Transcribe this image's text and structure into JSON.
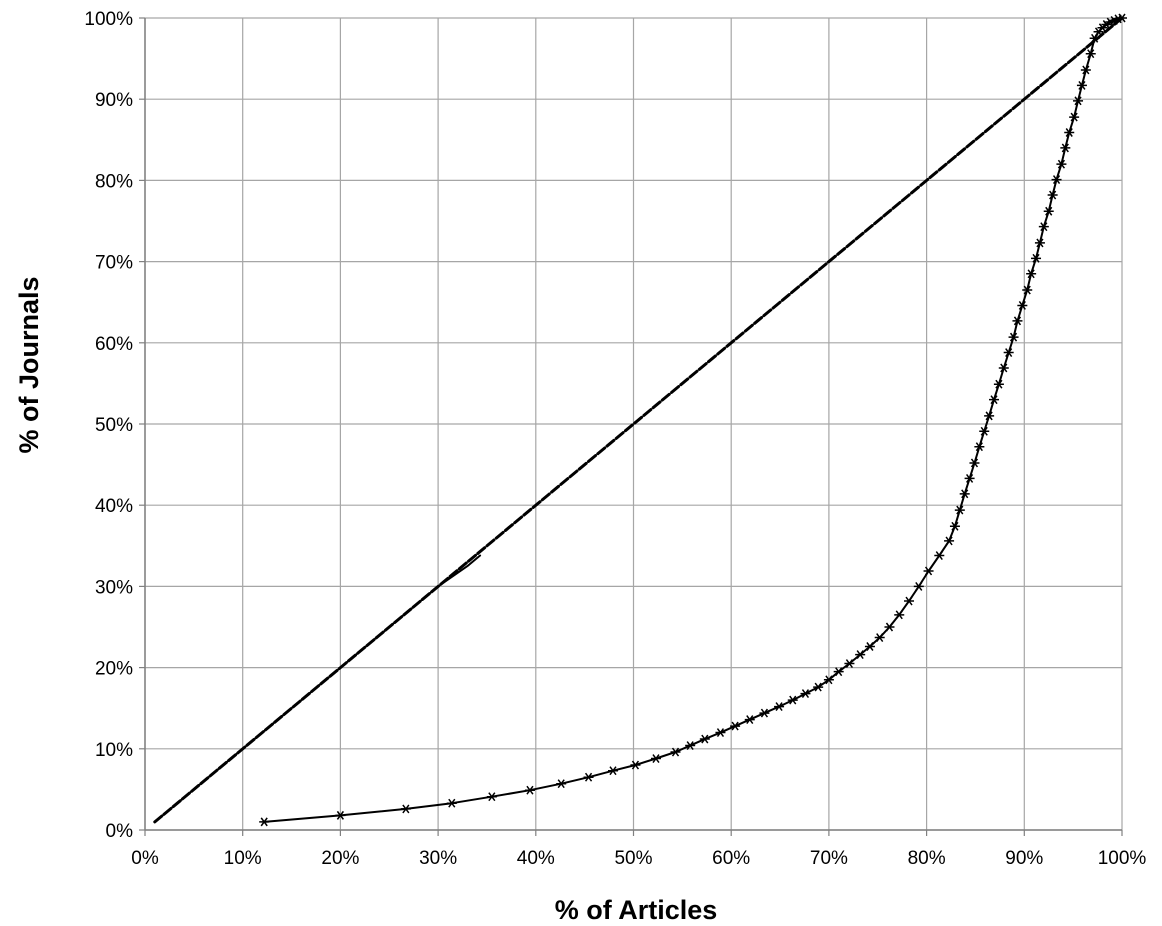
{
  "chart_data": {
    "type": "line",
    "title": "",
    "xlabel": "% of Articles",
    "ylabel": "% of Journals",
    "xlim": [
      0,
      100
    ],
    "ylim": [
      0,
      100
    ],
    "grid": true,
    "legend": "none",
    "xticks": [
      "0%",
      "10%",
      "20%",
      "30%",
      "40%",
      "50%",
      "60%",
      "70%",
      "80%",
      "90%",
      "100%"
    ],
    "yticks": [
      "0%",
      "10%",
      "20%",
      "30%",
      "40%",
      "50%",
      "60%",
      "70%",
      "80%",
      "90%",
      "100%"
    ],
    "colors": {
      "grid": "#a6a6a6",
      "axis": "#808080",
      "series": "#000000"
    },
    "series": [
      {
        "marker": "none",
        "dash": "dashed",
        "x": [
          1,
          100
        ],
        "y": [
          1,
          100
        ]
      },
      {
        "marker": "none",
        "dash": "solid",
        "x": [
          1,
          10,
          20,
          25,
          30,
          33,
          34.3
        ],
        "y": [
          1,
          10,
          20,
          25,
          30,
          32.5,
          33.8
        ]
      },
      {
        "marker": "asterisk",
        "dash": "solid",
        "x": [
          12.2,
          20,
          26.7,
          31.4,
          35.5,
          39.4,
          42.6,
          45.4,
          47.9,
          50.2,
          52.3,
          54.3,
          55.8,
          57.3,
          58.9,
          60.4,
          61.9,
          63.4,
          64.9,
          66.3,
          67.6,
          68.9,
          70.0,
          71.0,
          72.1,
          73.2,
          74.2,
          75.2,
          76.2,
          77.2,
          78.2,
          79.2,
          80.2,
          81.3,
          82.3,
          82.9,
          83.4,
          83.9,
          84.4,
          84.9,
          85.4,
          85.9,
          86.4,
          86.9,
          87.4,
          87.9,
          88.4,
          88.9,
          89.3,
          89.8,
          90.3,
          90.7,
          91.2,
          91.6,
          92.0,
          92.5,
          92.9,
          93.3,
          93.8,
          94.2,
          94.6,
          95.1,
          95.5,
          95.9,
          96.3,
          96.8,
          97.2,
          97.6,
          98.0,
          98.4,
          98.8,
          99.2,
          99.6,
          100
        ],
        "y": [
          1,
          1.8,
          2.6,
          3.3,
          4.1,
          4.9,
          5.7,
          6.5,
          7.3,
          8.0,
          8.8,
          9.6,
          10.4,
          11.2,
          12.0,
          12.8,
          13.6,
          14.4,
          15.2,
          16.0,
          16.8,
          17.6,
          18.5,
          19.5,
          20.5,
          21.6,
          22.6,
          23.7,
          25.0,
          26.5,
          28.2,
          30.0,
          31.9,
          33.8,
          35.6,
          37.4,
          39.4,
          41.4,
          43.3,
          45.2,
          47.2,
          49.1,
          51.0,
          53.0,
          54.9,
          56.9,
          58.8,
          60.7,
          62.7,
          64.6,
          66.5,
          68.5,
          70.4,
          72.3,
          74.3,
          76.2,
          78.2,
          80.1,
          82.0,
          84.0,
          85.9,
          87.8,
          89.8,
          91.7,
          93.6,
          95.6,
          97.5,
          98.3,
          98.8,
          99.2,
          99.5,
          99.7,
          99.9,
          100
        ]
      }
    ]
  }
}
